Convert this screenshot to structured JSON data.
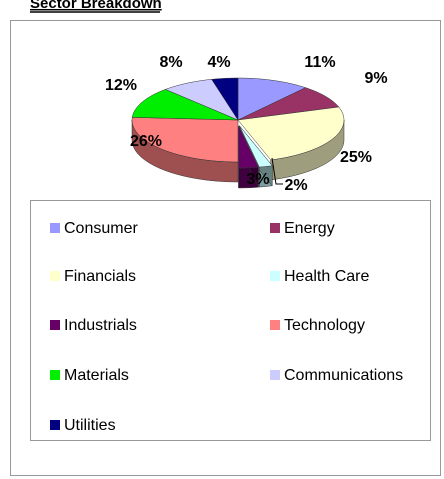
{
  "chart_data": {
    "type": "pie",
    "title": "Sector Breakdown",
    "categories": [
      "Consumer",
      "Energy",
      "Financials",
      "Health Care",
      "Industrials",
      "Technology",
      "Materials",
      "Communications",
      "Utilities"
    ],
    "values": [
      11,
      9,
      25,
      2,
      3,
      26,
      12,
      8,
      4
    ],
    "value_labels": [
      "11%",
      "9%",
      "25%",
      "2%",
      "3%",
      "26%",
      "12%",
      "8%",
      "4%"
    ],
    "colors": [
      "#9999ff",
      "#993366",
      "#ffffcc",
      "#ccffff",
      "#660066",
      "#ff8080",
      "#00ee00",
      "#ccccff",
      "#000080"
    ],
    "legend": "bottom"
  }
}
